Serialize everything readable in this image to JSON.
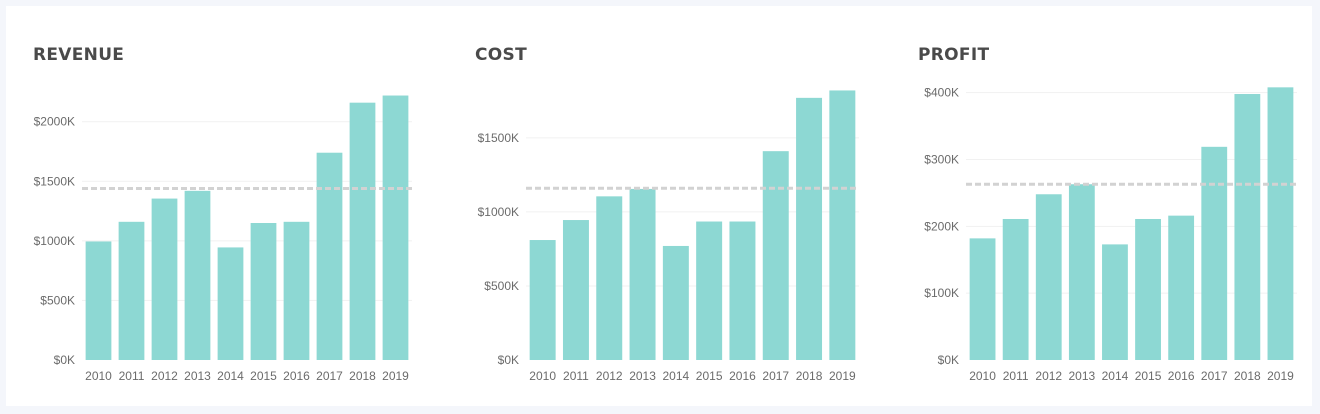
{
  "colors": {
    "bar": "#8dd8d3",
    "average_line": "#d2d2d2",
    "gridline": "#f1f1f1",
    "tick_label": "#6b6b6b",
    "title": "#4a4a4a"
  },
  "chart_data": [
    {
      "type": "bar",
      "title": "REVENUE",
      "categories": [
        "2010",
        "2011",
        "2012",
        "2013",
        "2014",
        "2015",
        "2016",
        "2017",
        "2018",
        "2019"
      ],
      "values": [
        995,
        1160,
        1355,
        1420,
        945,
        1150,
        1160,
        1740,
        2160,
        2220
      ],
      "reference_line": 1440,
      "ylim": [
        0,
        2300
      ],
      "yticks": [
        0,
        500,
        1000,
        1500,
        2000
      ],
      "ytick_labels": [
        "$0K",
        "$500K",
        "$1000K",
        "$1500K",
        "$2000K"
      ],
      "grid": true,
      "xlabel": "",
      "ylabel": ""
    },
    {
      "type": "bar",
      "title": "COST",
      "categories": [
        "2010",
        "2011",
        "2012",
        "2013",
        "2014",
        "2015",
        "2016",
        "2017",
        "2018",
        "2019"
      ],
      "values": [
        810,
        945,
        1105,
        1155,
        770,
        935,
        935,
        1410,
        1770,
        1820
      ],
      "reference_line": 1160,
      "ylim": [
        0,
        1850
      ],
      "yticks": [
        0,
        500,
        1000,
        1500
      ],
      "ytick_labels": [
        "$0K",
        "$500K",
        "$1000K",
        "$1500K"
      ],
      "grid": true,
      "xlabel": "",
      "ylabel": ""
    },
    {
      "type": "bar",
      "title": "PROFIT",
      "categories": [
        "2010",
        "2011",
        "2012",
        "2013",
        "2014",
        "2015",
        "2016",
        "2017",
        "2018",
        "2019"
      ],
      "values": [
        182,
        211,
        248,
        263,
        173,
        211,
        216,
        319,
        398,
        408
      ],
      "reference_line": 263,
      "ylim": [
        0,
        410
      ],
      "yticks": [
        0,
        100,
        200,
        300,
        400
      ],
      "ytick_labels": [
        "$0K",
        "$100K",
        "$200K",
        "$300K",
        "$400K"
      ],
      "grid": true,
      "xlabel": "",
      "ylabel": ""
    }
  ]
}
